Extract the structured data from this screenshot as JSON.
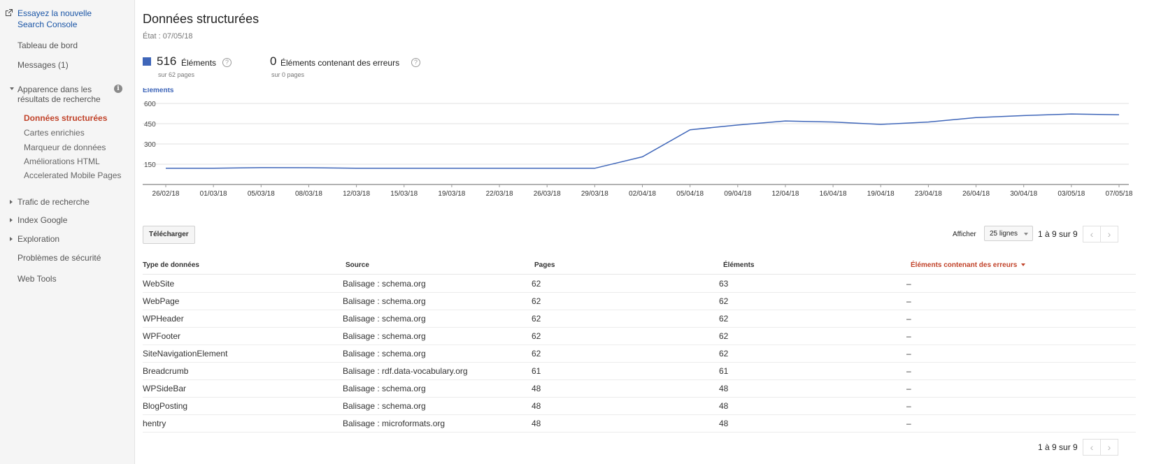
{
  "sidebar": {
    "promo": {
      "text": "Essayez la nouvelle Search Console",
      "icon": "external-link-icon"
    },
    "items": [
      {
        "label": "Tableau de bord"
      },
      {
        "label": "Messages (1)"
      }
    ],
    "section": {
      "label": "Apparence dans les résultats de recherche",
      "icon": "info-icon",
      "info_glyph": "i"
    },
    "sub_items": [
      {
        "label": "Données structurées",
        "active": true
      },
      {
        "label": "Cartes enrichies"
      },
      {
        "label": "Marqueur de données"
      },
      {
        "label": "Améliorations HTML"
      },
      {
        "label": "Accelerated Mobile Pages"
      }
    ],
    "collapsed_sections": [
      {
        "label": "Trafic de recherche"
      },
      {
        "label": "Index Google"
      },
      {
        "label": "Exploration"
      }
    ],
    "bottom_items": [
      {
        "label": "Problèmes de sécurité"
      },
      {
        "label": "Web Tools"
      }
    ]
  },
  "header": {
    "title": "Données structurées",
    "state": "État : 07/05/18"
  },
  "stats": {
    "items": {
      "value": "516",
      "label": "Éléments",
      "sub": "sur 62 pages",
      "help": "?"
    },
    "errors": {
      "value": "0",
      "label": "Éléments contenant des erreurs",
      "sub": "sur 0 pages",
      "help": "?"
    }
  },
  "colors": {
    "accent": "#3f66b9",
    "active_nav": "#c1432a",
    "link": "#1a55a6"
  },
  "chart_data": {
    "type": "line",
    "ylabel": "Éléments",
    "ylim": [
      0,
      600
    ],
    "y_ticks": [
      150,
      300,
      450,
      600
    ],
    "x_tick_labels": [
      "26/02/18",
      "01/03/18",
      "05/03/18",
      "08/03/18",
      "12/03/18",
      "15/03/18",
      "19/03/18",
      "22/03/18",
      "26/03/18",
      "29/03/18",
      "02/04/18",
      "05/04/18",
      "09/04/18",
      "12/04/18",
      "16/04/18",
      "19/04/18",
      "23/04/18",
      "26/04/18",
      "30/04/18",
      "03/05/18",
      "07/05/18"
    ],
    "series": [
      {
        "color": "#3f66b9",
        "x": [
          "26/02/18",
          "01/03/18",
          "05/03/18",
          "08/03/18",
          "12/03/18",
          "15/03/18",
          "19/03/18",
          "22/03/18",
          "26/03/18",
          "29/03/18",
          "02/04/18",
          "05/04/18",
          "09/04/18",
          "12/04/18",
          "16/04/18",
          "19/04/18",
          "23/04/18",
          "26/04/18",
          "30/04/18",
          "03/05/18",
          "07/05/18"
        ],
        "values": [
          120,
          120,
          125,
          124,
          120,
          120,
          120,
          120,
          120,
          120,
          205,
          405,
          440,
          470,
          462,
          445,
          462,
          495,
          510,
          522,
          516
        ]
      }
    ],
    "grid": true
  },
  "toolbar": {
    "download_label": "Télécharger",
    "show_label": "Afficher",
    "rows_select": "25 lignes",
    "pagination": "1 à 9 sur 9",
    "prev_icon": "chevron-left-icon",
    "next_icon": "chevron-right-icon",
    "prev_glyph": "‹",
    "next_glyph": "›"
  },
  "table": {
    "columns": [
      "Type de données",
      "Source",
      "Pages",
      "Éléments",
      "Éléments contenant des erreurs"
    ],
    "rows": [
      [
        "WebSite",
        "Balisage : schema.org",
        "62",
        "63",
        "–"
      ],
      [
        "WebPage",
        "Balisage : schema.org",
        "62",
        "62",
        "–"
      ],
      [
        "WPHeader",
        "Balisage : schema.org",
        "62",
        "62",
        "–"
      ],
      [
        "WPFooter",
        "Balisage : schema.org",
        "62",
        "62",
        "–"
      ],
      [
        "SiteNavigationElement",
        "Balisage : schema.org",
        "62",
        "62",
        "–"
      ],
      [
        "Breadcrumb",
        "Balisage : rdf.data-vocabulary.org",
        "61",
        "61",
        "–"
      ],
      [
        "WPSideBar",
        "Balisage : schema.org",
        "48",
        "48",
        "–"
      ],
      [
        "BlogPosting",
        "Balisage : schema.org",
        "48",
        "48",
        "–"
      ],
      [
        "hentry",
        "Balisage : microformats.org",
        "48",
        "48",
        "–"
      ]
    ]
  },
  "footer": {
    "pagination": "1 à 9 sur 9"
  }
}
